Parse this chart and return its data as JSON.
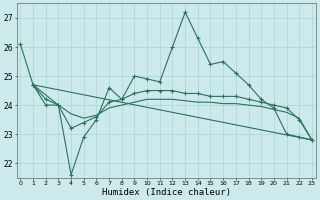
{
  "xlabel": "Humidex (Indice chaleur)",
  "background_color": "#cceaec",
  "grid_color": "#aad4d6",
  "line_color": "#2a7060",
  "ylim": [
    21.5,
    27.5
  ],
  "yticks": [
    22,
    23,
    24,
    25,
    26,
    27
  ],
  "xlim": [
    -0.3,
    23.3
  ],
  "curve1_x": [
    0,
    1,
    2,
    3,
    4,
    5,
    6,
    7,
    8,
    9,
    10,
    11,
    12,
    13,
    14,
    15,
    16,
    17,
    18,
    19,
    20,
    21,
    22,
    23
  ],
  "curve1_y": [
    26.1,
    24.7,
    24.0,
    24.0,
    21.6,
    22.9,
    23.5,
    24.6,
    24.2,
    25.0,
    24.9,
    24.8,
    26.0,
    27.2,
    26.3,
    25.4,
    25.5,
    25.1,
    24.7,
    24.2,
    23.9,
    23.0,
    22.9,
    22.8
  ],
  "curve2_x": [
    1,
    2,
    3,
    4,
    5,
    6,
    7,
    8,
    9,
    10,
    11,
    12,
    13,
    14,
    15,
    16,
    17,
    18,
    19,
    20,
    21,
    22,
    23
  ],
  "curve2_y": [
    24.7,
    24.2,
    24.0,
    23.2,
    23.4,
    23.6,
    24.1,
    24.2,
    24.4,
    24.5,
    24.5,
    24.5,
    24.4,
    24.4,
    24.3,
    24.3,
    24.3,
    24.2,
    24.1,
    24.0,
    23.9,
    23.5,
    22.8
  ],
  "curve3_x": [
    1,
    2,
    3,
    4,
    5,
    6,
    7,
    8,
    9,
    10,
    11,
    12,
    13,
    14,
    15,
    16,
    17,
    18,
    19,
    20,
    21,
    22,
    23
  ],
  "curve3_y": [
    24.7,
    24.35,
    24.0,
    23.7,
    23.55,
    23.65,
    23.9,
    24.0,
    24.1,
    24.2,
    24.2,
    24.2,
    24.15,
    24.1,
    24.1,
    24.05,
    24.05,
    24.0,
    23.95,
    23.85,
    23.75,
    23.55,
    22.8
  ],
  "curve4_x": [
    1,
    23
  ],
  "curve4_y": [
    24.7,
    22.8
  ]
}
